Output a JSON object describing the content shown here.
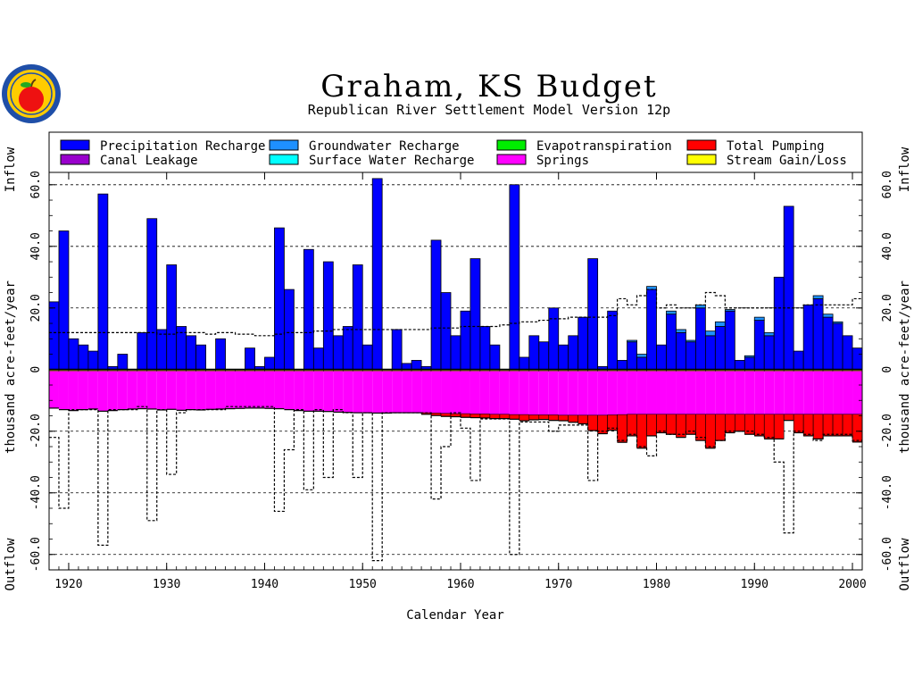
{
  "chart_data": {
    "type": "bar",
    "title": "Graham, KS Budget",
    "subtitle": "Republican River Settlement Model Version 12p",
    "xlabel": "Calendar Year",
    "ylabel_left": "thousand acre-feet/year",
    "ylabel_right": "thousand acre-feet/year",
    "inflow_label": "Inflow",
    "outflow_label": "Outflow",
    "xlim": [
      1918,
      2001
    ],
    "ylim": [
      -65,
      64
    ],
    "x_ticks": [
      "1920",
      "1930",
      "1940",
      "1950",
      "1960",
      "1970",
      "1980",
      "1990",
      "2000"
    ],
    "y_ticks": [
      "-60.0",
      "-40.0",
      "-20.0",
      "0",
      "20.0",
      "40.0",
      "60.0"
    ],
    "grid_lines": [
      60,
      40,
      20,
      -20,
      -40,
      -60
    ],
    "legend": {
      "placement": "top",
      "items": [
        {
          "label": "Precipitation Recharge",
          "color": "#0000ff"
        },
        {
          "label": "Groundwater Recharge",
          "color": "#1e90ff"
        },
        {
          "label": "Evapotranspiration",
          "color": "#00ee00"
        },
        {
          "label": "Total Pumping",
          "color": "#ff0000"
        },
        {
          "label": "Canal Leakage",
          "color": "#9900cc"
        },
        {
          "label": "Surface Water Recharge",
          "color": "#00ffff"
        },
        {
          "label": "Springs",
          "color": "#ff00ff"
        },
        {
          "label": "Stream Gain/Loss",
          "color": "#ffff00"
        }
      ]
    },
    "years": [
      1918,
      1919,
      1920,
      1921,
      1922,
      1923,
      1924,
      1925,
      1926,
      1927,
      1928,
      1929,
      1930,
      1931,
      1932,
      1933,
      1934,
      1935,
      1936,
      1937,
      1938,
      1939,
      1940,
      1941,
      1942,
      1943,
      1944,
      1945,
      1946,
      1947,
      1948,
      1949,
      1950,
      1951,
      1952,
      1953,
      1954,
      1955,
      1956,
      1957,
      1958,
      1959,
      1960,
      1961,
      1962,
      1963,
      1964,
      1965,
      1966,
      1967,
      1968,
      1969,
      1970,
      1971,
      1972,
      1973,
      1974,
      1975,
      1976,
      1977,
      1978,
      1979,
      1980,
      1981,
      1982,
      1983,
      1984,
      1985,
      1986,
      1987,
      1988,
      1989,
      1990,
      1991,
      1992,
      1993,
      1994,
      1995,
      1996,
      1997,
      1998,
      1999,
      2000
    ],
    "series": [
      {
        "name": "Precipitation Recharge",
        "color": "#0000ff",
        "values": [
          22,
          45,
          10,
          8,
          6,
          57,
          1,
          5,
          0,
          12,
          49,
          13,
          34,
          14,
          11,
          8,
          0,
          10,
          0,
          0,
          7,
          1,
          4,
          46,
          26,
          0,
          39,
          7,
          35,
          11,
          14,
          34,
          8,
          62,
          0,
          13,
          2,
          3,
          1,
          42,
          25,
          11,
          19,
          36,
          14,
          8,
          0,
          60,
          4,
          11,
          9,
          20,
          8,
          11,
          17,
          36,
          1,
          19,
          3,
          9,
          4,
          26,
          8,
          18,
          12,
          9,
          20,
          11,
          14,
          19,
          3,
          4,
          16,
          11,
          30,
          53,
          6,
          21,
          23,
          17,
          15,
          11,
          7
        ]
      },
      {
        "name": "Groundwater Recharge",
        "color": "#1e90ff",
        "values": [
          0,
          0,
          0,
          0,
          0,
          0,
          0,
          0,
          0,
          0,
          0,
          0,
          0,
          0,
          0,
          0,
          0,
          0,
          0,
          0,
          0,
          0,
          0,
          0,
          0,
          0,
          0,
          0,
          0,
          0,
          0,
          0,
          0,
          0,
          0,
          0,
          0,
          0,
          0,
          0,
          0,
          0,
          0,
          0,
          0,
          0,
          0,
          0,
          0,
          0,
          0,
          0,
          0,
          0,
          0,
          0,
          0,
          0,
          0,
          0.5,
          1,
          1,
          0,
          1,
          1,
          0.5,
          1,
          1.5,
          1.5,
          0.5,
          0,
          0.5,
          1,
          1,
          0,
          0,
          0,
          0,
          1,
          1,
          0.5,
          0,
          0
        ]
      },
      {
        "name": "Springs",
        "color": "#ff00ff",
        "values": [
          -12,
          -12.5,
          -12.8,
          -12.5,
          -12.3,
          -13,
          -12.8,
          -12.5,
          -12.3,
          -12.2,
          -12.3,
          -12.6,
          -12.4,
          -12.7,
          -12.5,
          -12.6,
          -12.4,
          -12.3,
          -12.2,
          -12.1,
          -12,
          -12,
          -12.1,
          -12.2,
          -12.5,
          -12.8,
          -13,
          -13,
          -13.1,
          -13.3,
          -13.4,
          -13.5,
          -13.5,
          -13.6,
          -13.6,
          -13.5,
          -13.5,
          -13.5,
          -13.5,
          -13.6,
          -13.7,
          -13.8,
          -13.8,
          -13.9,
          -13.9,
          -14,
          -14,
          -14.1,
          -14.1,
          -14.2,
          -14.2,
          -14.2,
          -14.3,
          -14.3,
          -14.3,
          -14.3,
          -14.3,
          -14.2,
          -14.1,
          -14,
          -14,
          -14,
          -14,
          -14,
          -14,
          -14,
          -14,
          -14,
          -14,
          -14,
          -14,
          -14,
          -14,
          -14,
          -14,
          -14,
          -14,
          -14,
          -14,
          -14,
          -14,
          -14,
          -14
        ]
      },
      {
        "name": "Total Pumping",
        "color": "#ff0000",
        "values": [
          0,
          0,
          0,
          0,
          0,
          0,
          0,
          0,
          0,
          0,
          0,
          0,
          0,
          0,
          0,
          0,
          0,
          0,
          0,
          0,
          0,
          0,
          0,
          0,
          0,
          0,
          0,
          0,
          0,
          0,
          0,
          0,
          0,
          0,
          0,
          0,
          0,
          0,
          -0.5,
          -0.8,
          -1,
          -1,
          -1.2,
          -1.2,
          -1.3,
          -1.4,
          -1.4,
          -1.5,
          -2,
          -1.6,
          -1.5,
          -1.8,
          -1.8,
          -2.3,
          -2.8,
          -5,
          -6,
          -5,
          -9,
          -7,
          -11,
          -7,
          -6,
          -6.5,
          -7.5,
          -6.5,
          -8.5,
          -11,
          -8.5,
          -6,
          -5.5,
          -6.5,
          -7,
          -8,
          -8,
          -2,
          -6,
          -7,
          -8,
          -7,
          -7,
          -7,
          -9
        ]
      },
      {
        "name": "Stream Gain/Loss",
        "color": "#ffff00",
        "values": [
          -0.5,
          -0.5,
          -0.5,
          -0.5,
          -0.5,
          -0.5,
          -0.5,
          -0.5,
          -0.5,
          -0.5,
          -0.5,
          -0.5,
          -0.5,
          -0.5,
          -0.5,
          -0.5,
          -0.5,
          -0.5,
          -0.5,
          -0.5,
          -0.5,
          -0.5,
          -0.5,
          -0.5,
          -0.5,
          -0.5,
          -0.5,
          -0.5,
          -0.5,
          -0.5,
          -0.5,
          -0.5,
          -0.5,
          -0.5,
          -0.5,
          -0.5,
          -0.5,
          -0.5,
          -0.5,
          -0.5,
          -0.5,
          -0.5,
          -0.5,
          -0.5,
          -0.5,
          -0.5,
          -0.5,
          -0.5,
          -0.5,
          -0.5,
          -0.5,
          -0.5,
          -0.5,
          -0.5,
          -0.5,
          -0.5,
          -0.5,
          -0.5,
          -0.5,
          -0.5,
          -0.5,
          -0.5,
          -0.5,
          -0.5,
          -0.5,
          -0.5,
          -0.5,
          -0.5,
          -0.5,
          -0.5,
          -0.5,
          -0.5,
          -0.5,
          -0.5,
          -0.5,
          -0.5,
          -0.5,
          -0.5,
          -0.5,
          -0.5,
          -0.5,
          -0.5,
          -0.5
        ]
      }
    ],
    "dashed_line_inflow": [
      12,
      12,
      12,
      12,
      12,
      12,
      12,
      12,
      12,
      12,
      12,
      11.5,
      11.5,
      12,
      12,
      12,
      11.5,
      12,
      12,
      11.5,
      11.5,
      11,
      11,
      11.5,
      12,
      12,
      12,
      12.5,
      12.5,
      13,
      13,
      13,
      13,
      13,
      13,
      13,
      13,
      13,
      13,
      13.5,
      13.5,
      13.5,
      14,
      14,
      14,
      14,
      14.5,
      15,
      15.5,
      15.5,
      16,
      16.5,
      16.5,
      17,
      17,
      17,
      17,
      17.5,
      23,
      21,
      24,
      26,
      20,
      21,
      20,
      20,
      21,
      25,
      24,
      20,
      20,
      20,
      20,
      20,
      20,
      20,
      20,
      21,
      21,
      21,
      21,
      21,
      23
    ],
    "dashed_line_outflow": [
      -22,
      -45,
      -13,
      -13,
      -13,
      -57,
      -13,
      -13,
      -13,
      -12,
      -49,
      -13,
      -34,
      -14,
      -13,
      -13,
      -13,
      -13,
      -12,
      -12,
      -12,
      -12,
      -12,
      -46,
      -26,
      -13,
      -39,
      -13,
      -35,
      -13,
      -14,
      -35,
      -14,
      -62,
      -14,
      -14,
      -14,
      -14,
      -14,
      -42,
      -25,
      -14,
      -19,
      -36,
      -16,
      -16,
      -16,
      -60,
      -17,
      -17,
      -17,
      -20,
      -18,
      -18,
      -18,
      -36,
      -20,
      -19,
      -23,
      -21,
      -25,
      -28,
      -20,
      -21,
      -21,
      -20,
      -22,
      -25,
      -23,
      -20,
      -20,
      -20,
      -21,
      -22,
      -30,
      -53,
      -20,
      -21,
      -23,
      -21,
      -21,
      -21,
      -23
    ]
  },
  "logo": {
    "icon": "seal-with-apple-icon",
    "fill": "#ffcc00",
    "ring": "#1f4fa8",
    "apple": "#ee1111"
  }
}
